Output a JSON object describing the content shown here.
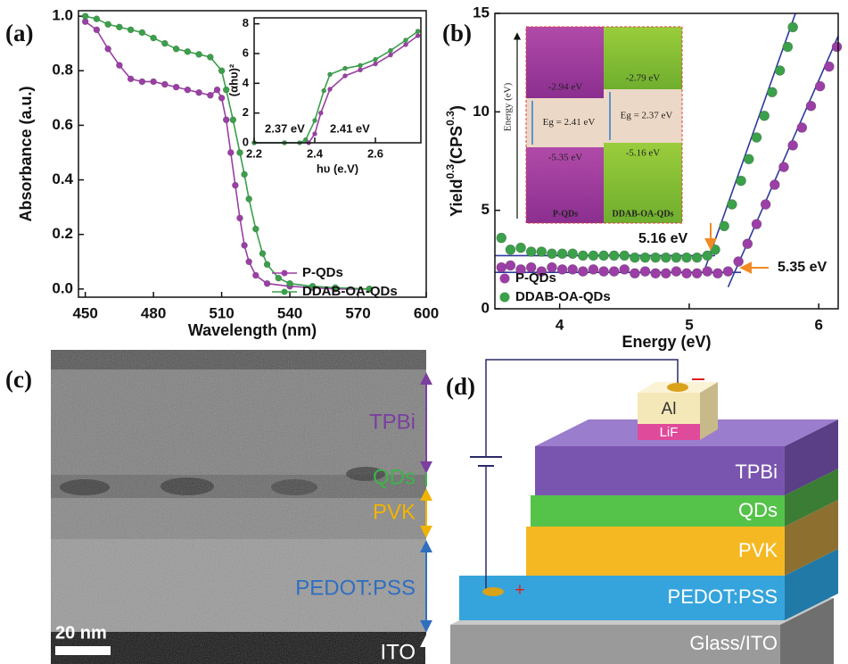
{
  "chart_data": [
    {
      "type": "line",
      "label": "(a)",
      "xlabel": "Wavelength (nm)",
      "ylabel": "Absorbance (a.u.)",
      "xlim": [
        447,
        600
      ],
      "ylim": [
        -0.03,
        1.02
      ],
      "xticks": [
        450,
        480,
        510,
        540,
        570,
        600
      ],
      "yticks": [
        {
          "value": 0,
          "label": "0.0"
        },
        0.2,
        0.4,
        0.6,
        0.8,
        {
          "value": 1,
          "label": "1.0"
        }
      ],
      "legend": "lower right",
      "series": [
        {
          "name": "P-QDs",
          "color": "#9b3fa6",
          "x": [
            450,
            455,
            460,
            465,
            470,
            475,
            480,
            485,
            490,
            495,
            500,
            505,
            508,
            510,
            512,
            514,
            516,
            518,
            520,
            522,
            525,
            530,
            540,
            550,
            560,
            575
          ],
          "values": [
            0.98,
            0.95,
            0.88,
            0.82,
            0.77,
            0.76,
            0.76,
            0.75,
            0.74,
            0.73,
            0.72,
            0.71,
            0.73,
            0.7,
            0.62,
            0.5,
            0.38,
            0.26,
            0.16,
            0.1,
            0.05,
            0.02,
            0.01,
            0.005,
            0,
            0
          ]
        },
        {
          "name": "DDAB-OA-QDs",
          "color": "#3aa04a",
          "x": [
            450,
            455,
            460,
            465,
            470,
            475,
            480,
            485,
            490,
            495,
            500,
            505,
            510,
            512,
            515,
            518,
            520,
            522,
            525,
            528,
            530,
            535,
            540,
            550,
            560,
            575
          ],
          "values": [
            1.0,
            0.99,
            0.97,
            0.96,
            0.95,
            0.94,
            0.92,
            0.9,
            0.88,
            0.87,
            0.86,
            0.85,
            0.8,
            0.73,
            0.62,
            0.5,
            0.42,
            0.33,
            0.22,
            0.13,
            0.09,
            0.04,
            0.02,
            0.01,
            0.005,
            0
          ]
        }
      ]
    },
    {
      "type": "line",
      "xlabel": "hυ (e.V)",
      "ylabel": "(αhυ)²",
      "xlim": [
        2.2,
        2.75
      ],
      "ylim": [
        0,
        8.4
      ],
      "xticks": [
        2.2,
        2.4,
        2.6
      ],
      "yticks": [
        0,
        2,
        4,
        6,
        8
      ],
      "annotations": [
        "2.37 eV",
        "2.41 eV"
      ],
      "series": [
        {
          "color": "#9b3fa6",
          "x": [
            2.2,
            2.3,
            2.38,
            2.4,
            2.42,
            2.45,
            2.5,
            2.55,
            2.6,
            2.65,
            2.7,
            2.74
          ],
          "values": [
            0,
            0,
            0,
            0.6,
            2.0,
            3.6,
            4.5,
            4.9,
            5.3,
            5.9,
            6.6,
            7.2
          ]
        },
        {
          "color": "#3aa04a",
          "x": [
            2.2,
            2.3,
            2.35,
            2.37,
            2.4,
            2.43,
            2.45,
            2.5,
            2.55,
            2.6,
            2.65,
            2.7,
            2.74
          ],
          "values": [
            0,
            0,
            0,
            0.2,
            1.5,
            3.5,
            4.6,
            5.0,
            5.2,
            5.6,
            6.2,
            6.9,
            7.5
          ]
        }
      ]
    },
    {
      "type": "scatter",
      "label": "(b)",
      "xlabel": "Energy (eV)",
      "ylabel_parts": [
        "Yield",
        "0.3",
        "(CPS",
        "0.3",
        ")"
      ],
      "xlim": [
        3.5,
        6.15
      ],
      "ylim": [
        0,
        15
      ],
      "xticks": [
        4,
        5,
        6
      ],
      "yticks": [
        0,
        5,
        10,
        15
      ],
      "legend": "lower left",
      "annotations": [
        "5.16 eV",
        "5.35 eV"
      ],
      "series": [
        {
          "name": "P-QDs",
          "color": "#9b3fa6",
          "x": [
            3.55,
            3.62,
            3.7,
            3.78,
            3.86,
            3.94,
            4.02,
            4.1,
            4.18,
            4.26,
            4.34,
            4.42,
            4.5,
            4.58,
            4.66,
            4.74,
            4.82,
            4.9,
            4.98,
            5.06,
            5.14,
            5.22,
            5.3,
            5.38,
            5.45,
            5.52,
            5.59,
            5.66,
            5.73,
            5.8,
            5.87,
            5.94,
            6.01,
            6.08,
            6.14
          ],
          "values": [
            2.1,
            2.2,
            2.0,
            2.1,
            1.9,
            2.1,
            2.0,
            2.0,
            1.9,
            2.0,
            1.9,
            1.9,
            2.0,
            1.8,
            1.9,
            1.8,
            1.8,
            1.9,
            1.8,
            1.8,
            1.9,
            1.8,
            1.9,
            2.4,
            3.3,
            4.3,
            5.3,
            6.3,
            7.2,
            8.3,
            9.2,
            10.3,
            11.3,
            12.3,
            13.3
          ]
        },
        {
          "name": "DDAB-OA-QDs",
          "color": "#3aa04a",
          "x": [
            3.55,
            3.62,
            3.7,
            3.78,
            3.86,
            3.94,
            4.02,
            4.1,
            4.18,
            4.26,
            4.34,
            4.42,
            4.5,
            4.58,
            4.66,
            4.74,
            4.82,
            4.9,
            4.98,
            5.06,
            5.14,
            5.2,
            5.27,
            5.33,
            5.4,
            5.46,
            5.52,
            5.58,
            5.64,
            5.7,
            5.76,
            5.8
          ],
          "values": [
            3.6,
            3.0,
            3.1,
            2.9,
            2.9,
            2.8,
            2.8,
            2.8,
            2.7,
            2.7,
            2.7,
            2.7,
            2.7,
            2.6,
            2.6,
            2.6,
            2.6,
            2.6,
            2.6,
            2.6,
            2.7,
            3.0,
            4.2,
            5.3,
            6.5,
            7.6,
            8.7,
            9.8,
            11.0,
            12.1,
            13.3,
            14.3
          ]
        }
      ],
      "fits": [
        {
          "color": "#2e3a9c",
          "x": [
            3.5,
            5.4
          ],
          "values": [
            1.85,
            1.85
          ]
        },
        {
          "color": "#2e3a9c",
          "x": [
            5.3,
            6.15
          ],
          "values": [
            1.1,
            13.85
          ]
        },
        {
          "color": "#2e3a9c",
          "x": [
            3.5,
            5.2
          ],
          "values": [
            2.7,
            2.7
          ]
        },
        {
          "color": "#2e3a9c",
          "x": [
            5.12,
            5.82
          ],
          "values": [
            2.0,
            15
          ]
        }
      ],
      "inset_diagram": {
        "ylabel": "Energy (eV)",
        "materials": [
          {
            "name": "P-QDs",
            "lumo": "-2.94 eV",
            "gap": "Eg = 2.41 eV",
            "homo": "-5.35 eV"
          },
          {
            "name": "DDAB-OA-QDs",
            "lumo": "-2.79 eV",
            "gap": "Eg = 2.37 eV",
            "homo": "-5.16 eV"
          }
        ]
      }
    }
  ],
  "tem": {
    "label": "(c)",
    "layers": [
      "TPBi",
      "QDs",
      "PVK",
      "PEDOT:PSS",
      "ITO"
    ],
    "scale_bar": "20 nm"
  },
  "device": {
    "label": "(d)",
    "layers": [
      "Glass/ITO",
      "PEDOT:PSS",
      "PVK",
      "QDs",
      "TPBi"
    ],
    "cathode": [
      "LiF",
      "Al"
    ],
    "anode_sign": "+"
  }
}
